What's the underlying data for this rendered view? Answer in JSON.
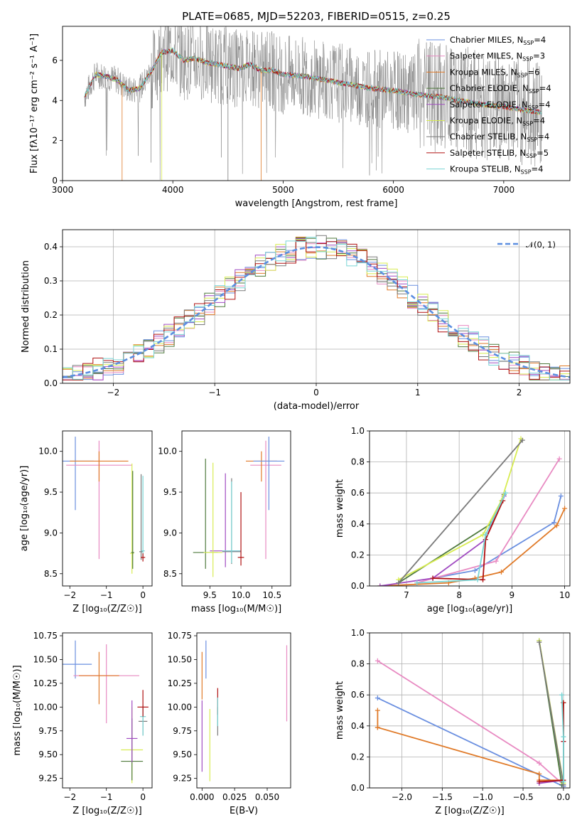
{
  "title": "PLATE=0685, MJD=52203, FIBERID=0515, z=0.25",
  "colors": {
    "Chabrier MILES": "#6a8fe0",
    "Salpeter MILES": "#e88ac2",
    "Kroupa MILES": "#e07a28",
    "Chabrier ELODIE": "#4f7a3d",
    "Salpeter ELODIE": "#a14cc2",
    "Kroupa ELODIE": "#d8ec52",
    "Chabrier STELIB": "#7a7a7a",
    "Salpeter STELIB": "#b01010",
    "Kroupa STELIB": "#78d5d5",
    "gauss": "#5b8ee0"
  },
  "chart_data": [
    {
      "type": "line",
      "title": "PLATE=0685, MJD=52203, FIBERID=0515, z=0.25",
      "xlabel": "wavelength [Angstrom, rest frame]",
      "ylabel": "Flux [f_λ 10^-17 erg cm^-2 s^-1 A^-1]",
      "xlim": [
        3000,
        7600
      ],
      "ylim": [
        0,
        7.7
      ],
      "xticks": [
        3000,
        4000,
        5000,
        6000,
        7000
      ],
      "yticks": [
        0,
        2,
        4,
        6
      ],
      "legend_position": "top-right",
      "data_range": [
        3200,
        7350
      ],
      "continuum": [
        [
          3200,
          4.2
        ],
        [
          3300,
          5.3
        ],
        [
          3400,
          5.2
        ],
        [
          3500,
          5.0
        ],
        [
          3600,
          4.5
        ],
        [
          3700,
          4.6
        ],
        [
          3800,
          5.4
        ],
        [
          3900,
          6.4
        ],
        [
          4000,
          6.5
        ],
        [
          4100,
          6.0
        ],
        [
          4200,
          6.1
        ],
        [
          4300,
          5.9
        ],
        [
          4400,
          5.8
        ],
        [
          4500,
          5.7
        ],
        [
          4600,
          5.6
        ],
        [
          4700,
          5.8
        ],
        [
          4800,
          5.5
        ],
        [
          4900,
          5.5
        ],
        [
          5000,
          5.3
        ],
        [
          5200,
          5.2
        ],
        [
          5400,
          5.0
        ],
        [
          5600,
          4.8
        ],
        [
          5800,
          4.6
        ],
        [
          6000,
          4.5
        ],
        [
          6200,
          4.3
        ],
        [
          6400,
          4.2
        ],
        [
          6600,
          4.0
        ],
        [
          6800,
          3.8
        ],
        [
          7000,
          3.7
        ],
        [
          7200,
          3.5
        ],
        [
          7350,
          3.4
        ]
      ],
      "series": [
        {
          "name": "Chabrier MILES",
          "n_ssp": "4"
        },
        {
          "name": "Salpeter MILES",
          "n_ssp": "3"
        },
        {
          "name": "Kroupa MILES",
          "n_ssp": "6"
        },
        {
          "name": "Chabrier ELODIE",
          "n_ssp": "4"
        },
        {
          "name": "Salpeter ELODIE",
          "n_ssp": "4"
        },
        {
          "name": "Kroupa ELODIE",
          "n_ssp": "4"
        },
        {
          "name": "Chabrier STELIB",
          "n_ssp": "4"
        },
        {
          "name": "Salpeter STELIB",
          "n_ssp": "5"
        },
        {
          "name": "Kroupa STELIB",
          "n_ssp": "4"
        }
      ]
    },
    {
      "type": "bar",
      "xlabel": "(data-model)/error",
      "ylabel": "Normed distribution",
      "xlim": [
        -2.5,
        2.5
      ],
      "ylim": [
        0,
        0.45
      ],
      "xticks": [
        -2,
        -1,
        0,
        1,
        2
      ],
      "yticks": [
        0.0,
        0.1,
        0.2,
        0.3,
        0.4
      ],
      "grid": true,
      "bin_width": 0.1,
      "legend": "𝒩(0, 1)",
      "legend_position": "top-right",
      "gaussian": {
        "mean": 0,
        "sigma": 1
      }
    },
    {
      "type": "scatter",
      "xlabel": "Z [log10(Z/Z☉)]",
      "ylabel": "age  [log10(age/yr)]",
      "xlim": [
        -2.2,
        0.25
      ],
      "ylim": [
        8.35,
        10.25
      ],
      "xticks": [
        -2,
        -1,
        0
      ],
      "yticks": [
        8.5,
        9.0,
        9.5,
        10.0
      ],
      "points": [
        {
          "series": "Chabrier MILES",
          "x": -1.85,
          "y": 9.88,
          "xerr": 0.5,
          "yerr": [
            0.6,
            0.3
          ]
        },
        {
          "series": "Salpeter MILES",
          "x": -1.2,
          "y": 9.83,
          "xerr": 0.9,
          "yerr": [
            1.15,
            0.3
          ]
        },
        {
          "series": "Kroupa MILES",
          "x": -1.2,
          "y": 9.88,
          "xerr": 0.8,
          "yerr": [
            0.25,
            0.12
          ]
        },
        {
          "series": "Kroupa ELODIE",
          "x": -0.3,
          "y": 8.75,
          "xerr": 0.05,
          "yerr": [
            0.25,
            1.1
          ]
        },
        {
          "series": "Chabrier ELODIE",
          "x": -0.28,
          "y": 8.76,
          "xerr": 0.04,
          "yerr": [
            0.2,
            1.0
          ]
        },
        {
          "series": "Chabrier STELIB",
          "x": -0.05,
          "y": 8.77,
          "xerr": 0.05,
          "yerr": [
            0.1,
            0.95
          ]
        },
        {
          "series": "Kroupa STELIB",
          "x": 0.0,
          "y": 8.78,
          "xerr": 0.05,
          "yerr": [
            0.1,
            0.92
          ]
        },
        {
          "series": "Salpeter STELIB",
          "x": 0.0,
          "y": 8.7,
          "xerr": 0.06,
          "yerr": [
            0.05,
            0.05
          ]
        }
      ]
    },
    {
      "type": "scatter",
      "xlabel": "mass [log10(M/M☉)]",
      "ylabel": "",
      "xlim": [
        9.05,
        10.8
      ],
      "ylim": [
        8.35,
        10.25
      ],
      "xticks": [
        9.5,
        10.0,
        10.5
      ],
      "yticks": [
        8.5,
        9.0,
        9.5,
        10.0
      ],
      "points": [
        {
          "series": "Chabrier ELODIE",
          "x": 9.43,
          "y": 8.76,
          "xerr": 0.2,
          "yerr": [
            0.2,
            1.15
          ]
        },
        {
          "series": "Salpeter ELODIE",
          "x": 9.75,
          "y": 8.78,
          "xerr": 0.25,
          "yerr": [
            0.2,
            0.95
          ]
        },
        {
          "series": "Kroupa ELODIE",
          "x": 9.55,
          "y": 8.76,
          "xerr": 0.15,
          "yerr": [
            0.3,
            1.1
          ]
        },
        {
          "series": "Chabrier STELIB",
          "x": 9.85,
          "y": 8.77,
          "xerr": 0.15,
          "yerr": [
            0.15,
            0.9
          ]
        },
        {
          "series": "Kroupa STELIB",
          "x": 9.85,
          "y": 8.78,
          "xerr": 0.15,
          "yerr": [
            0.15,
            0.85
          ]
        },
        {
          "series": "Salpeter STELIB",
          "x": 10.0,
          "y": 8.7,
          "xerr": 0.05,
          "yerr": [
            0.1,
            0.8
          ]
        },
        {
          "series": "Salpeter MILES",
          "x": 10.4,
          "y": 9.83,
          "xerr": 0.25,
          "yerr": [
            1.15,
            0.3
          ]
        },
        {
          "series": "Kroupa MILES",
          "x": 10.33,
          "y": 9.88,
          "xerr": 0.25,
          "yerr": [
            0.25,
            0.12
          ]
        },
        {
          "series": "Chabrier MILES",
          "x": 10.45,
          "y": 9.88,
          "xerr": 0.25,
          "yerr": [
            0.6,
            0.3
          ]
        }
      ]
    },
    {
      "type": "line",
      "xlabel": "age  [log10(age/yr)]",
      "ylabel": "mass weight",
      "xlim": [
        6.3,
        10.1
      ],
      "ylim": [
        0,
        1.0
      ],
      "xticks": [
        7,
        8,
        9,
        10
      ],
      "yticks": [
        0.0,
        0.2,
        0.4,
        0.6,
        0.8,
        1.0
      ],
      "grid": true,
      "series": [
        {
          "name": "Chabrier MILES",
          "points": [
            [
              7.5,
              0.05
            ],
            [
              8.3,
              0.1
            ],
            [
              9.8,
              0.41
            ],
            [
              9.93,
              0.58
            ]
          ]
        },
        {
          "name": "Salpeter MILES",
          "points": [
            [
              7.2,
              0.02
            ],
            [
              8.7,
              0.16
            ],
            [
              9.9,
              0.82
            ]
          ]
        },
        {
          "name": "Kroupa MILES",
          "points": [
            [
              6.5,
              0.0
            ],
            [
              7.8,
              0.02
            ],
            [
              8.3,
              0.05
            ],
            [
              8.8,
              0.09
            ],
            [
              9.85,
              0.39
            ],
            [
              10.0,
              0.5
            ]
          ]
        },
        {
          "name": "Chabrier ELODIE",
          "points": [
            [
              6.85,
              0.02
            ],
            [
              8.6,
              0.4
            ],
            [
              8.85,
              0.59
            ]
          ]
        },
        {
          "name": "Salpeter ELODIE",
          "points": [
            [
              6.5,
              0.0
            ],
            [
              7.5,
              0.05
            ],
            [
              8.5,
              0.3
            ],
            [
              8.85,
              0.58
            ]
          ]
        },
        {
          "name": "Kroupa ELODIE",
          "points": [
            [
              6.85,
              0.04
            ],
            [
              8.45,
              0.33
            ],
            [
              8.8,
              0.55
            ],
            [
              9.17,
              0.95
            ]
          ]
        },
        {
          "name": "Chabrier STELIB",
          "points": [
            [
              6.85,
              0.02
            ],
            [
              9.2,
              0.94
            ]
          ]
        },
        {
          "name": "Salpeter STELIB",
          "points": [
            [
              7.5,
              0.05
            ],
            [
              8.45,
              0.04
            ],
            [
              8.5,
              0.3
            ],
            [
              8.83,
              0.55
            ]
          ]
        },
        {
          "name": "Kroupa STELIB",
          "points": [
            [
              7.2,
              0.02
            ],
            [
              8.35,
              0.04
            ],
            [
              8.5,
              0.33
            ],
            [
              8.88,
              0.6
            ]
          ]
        }
      ]
    },
    {
      "type": "scatter",
      "xlabel": "Z [log10(Z/Z☉)]",
      "ylabel": "mass [log10(M/M☉)]",
      "xlim": [
        -2.2,
        0.25
      ],
      "ylim": [
        9.15,
        10.78
      ],
      "xticks": [
        -2,
        -1,
        0
      ],
      "yticks": [
        9.25,
        9.5,
        9.75,
        10.0,
        10.25,
        10.5,
        10.75
      ],
      "points": [
        {
          "series": "Chabrier MILES",
          "x": -1.85,
          "y": 10.45,
          "xerr": 0.45,
          "yerr": [
            0.15,
            0.25
          ]
        },
        {
          "series": "Salpeter MILES",
          "x": -1.0,
          "y": 10.33,
          "xerr": 0.9,
          "yerr": [
            0.5,
            0.33
          ]
        },
        {
          "series": "Kroupa MILES",
          "x": -1.2,
          "y": 10.33,
          "xerr": 0.55,
          "yerr": [
            0.3,
            0.25
          ]
        },
        {
          "series": "Kroupa ELODIE",
          "x": -0.3,
          "y": 9.55,
          "xerr": 0.3,
          "yerr": [
            0.35,
            0.45
          ]
        },
        {
          "series": "Chabrier ELODIE",
          "x": -0.3,
          "y": 9.43,
          "xerr": 0.3,
          "yerr": [
            0.2,
            0.45
          ]
        },
        {
          "series": "Salpeter ELODIE",
          "x": -0.3,
          "y": 9.67,
          "xerr": 0.15,
          "yerr": [
            0.25,
            0.4
          ]
        },
        {
          "series": "Chabrier STELIB",
          "x": 0.0,
          "y": 9.85,
          "xerr": 0.12,
          "yerr": [
            0.15,
            0.15
          ]
        },
        {
          "series": "Kroupa STELIB",
          "x": 0.0,
          "y": 9.9,
          "xerr": 0.08,
          "yerr": [
            0.2,
            0.12
          ]
        },
        {
          "series": "Salpeter STELIB",
          "x": 0.0,
          "y": 10.0,
          "xerr": 0.15,
          "yerr": [
            0.1,
            0.18
          ]
        }
      ]
    },
    {
      "type": "scatter",
      "xlabel": "E(B-V)",
      "ylabel": "",
      "xlim": [
        -0.004,
        0.068
      ],
      "ylim": [
        9.15,
        10.78
      ],
      "xticks": [
        0.0,
        0.025,
        0.05
      ],
      "yticks": [
        9.25,
        9.5,
        9.75,
        10.0,
        10.25,
        10.5,
        10.75
      ],
      "points": [
        {
          "series": "Salpeter ELODIE",
          "x": 0.0,
          "y": 9.67,
          "yerr": [
            0.35,
            0.4
          ]
        },
        {
          "series": "Kroupa MILES",
          "x": 0.0,
          "y": 10.33,
          "yerr": [
            0.25,
            0.25
          ]
        },
        {
          "series": "Chabrier MILES",
          "x": 0.003,
          "y": 10.5,
          "yerr": [
            0.2,
            0.2
          ]
        },
        {
          "series": "Kroupa ELODIE",
          "x": 0.006,
          "y": 9.6,
          "yerr": [
            0.38,
            0.38
          ]
        },
        {
          "series": "Chabrier STELIB",
          "x": 0.012,
          "y": 9.85,
          "yerr": [
            0.15,
            0.15
          ]
        },
        {
          "series": "Salpeter STELIB",
          "x": 0.012,
          "y": 10.0,
          "yerr": [
            0.08,
            0.2
          ]
        },
        {
          "series": "Kroupa STELIB",
          "x": 0.012,
          "y": 9.95,
          "yerr": [
            0.15,
            0.15
          ]
        },
        {
          "series": "Salpeter MILES",
          "x": 0.065,
          "y": 10.25,
          "yerr": [
            0.4,
            0.4
          ]
        }
      ]
    },
    {
      "type": "line",
      "xlabel": "Z [log10(Z/Z☉)]",
      "ylabel": "mass weight",
      "xlim": [
        -2.4,
        0.08
      ],
      "ylim": [
        0,
        1.0
      ],
      "xticks": [
        -2.0,
        -1.5,
        -1.0,
        -0.5,
        0.0
      ],
      "yticks": [
        0.0,
        0.2,
        0.4,
        0.6,
        0.8,
        1.0
      ],
      "grid": true,
      "series": [
        {
          "name": "Chabrier MILES",
          "points": [
            [
              -2.3,
              0.58
            ],
            [
              0.0,
              0.01
            ]
          ]
        },
        {
          "name": "Salpeter MILES",
          "points": [
            [
              -2.3,
              0.82
            ],
            [
              -0.3,
              0.16
            ],
            [
              0.0,
              0.02
            ]
          ]
        },
        {
          "name": "Kroupa MILES",
          "points": [
            [
              -2.3,
              0.39
            ],
            [
              -2.3,
              0.5
            ],
            [
              -2.3,
              0.39
            ],
            [
              -0.3,
              0.09
            ],
            [
              -0.3,
              0.05
            ],
            [
              0.0,
              0.05
            ]
          ]
        },
        {
          "name": "Chabrier ELODIE",
          "points": [
            [
              -0.3,
              0.95
            ],
            [
              -0.02,
              0.02
            ]
          ]
        },
        {
          "name": "Salpeter ELODIE",
          "points": [
            [
              -0.3,
              0.03
            ],
            [
              0.0,
              0.05
            ],
            [
              0.0,
              0.3
            ]
          ]
        },
        {
          "name": "Kroupa ELODIE",
          "points": [
            [
              -0.3,
              0.95
            ],
            [
              0.0,
              0.03
            ],
            [
              0.0,
              0.55
            ]
          ]
        },
        {
          "name": "Chabrier STELIB",
          "points": [
            [
              -0.3,
              0.94
            ],
            [
              0.0,
              0.02
            ],
            [
              0.0,
              0.55
            ]
          ]
        },
        {
          "name": "Salpeter STELIB",
          "points": [
            [
              -0.3,
              0.04
            ],
            [
              0.0,
              0.05
            ],
            [
              0.0,
              0.3
            ],
            [
              0.0,
              0.55
            ]
          ]
        },
        {
          "name": "Kroupa STELIB",
          "points": [
            [
              -0.02,
              0.6
            ],
            [
              0.0,
              0.33
            ],
            [
              0.0,
              0.04
            ]
          ]
        }
      ]
    }
  ]
}
